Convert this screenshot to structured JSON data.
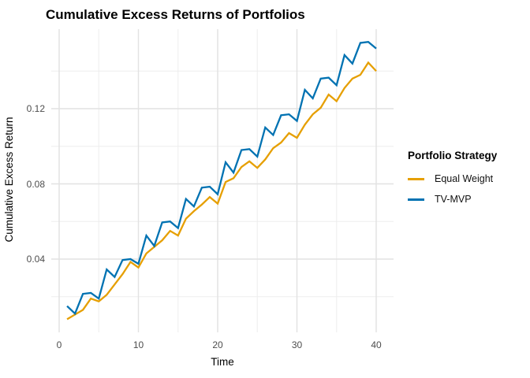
{
  "title": "Cumulative Excess Returns of Portfolios",
  "legend": {
    "title": "Portfolio Strategy",
    "items": [
      {
        "label": "Equal Weight",
        "color": "#E69F00"
      },
      {
        "label": "TV-MVP",
        "color": "#0072B2"
      }
    ]
  },
  "colors": {
    "background": "#FFFFFF",
    "grid_major": "#E2E2E2",
    "grid_minor": "#EDEDED",
    "tick_label": "#4D4D4D",
    "equal_weight": "#E69F00",
    "tv_mvp": "#0072B2"
  },
  "chart_data": {
    "type": "line",
    "title": "Cumulative Excess Returns of Portfolios",
    "xlabel": "Time",
    "ylabel": "Cumulative Excess Return",
    "legend_title": "Portfolio Strategy",
    "legend_position": "right",
    "grid": true,
    "xlim": [
      -1,
      42.2
    ],
    "ylim": [
      0.001,
      0.162
    ],
    "x_ticks": [
      0,
      10,
      20,
      30,
      40
    ],
    "x_tick_labels": [
      "0",
      "10",
      "20",
      "30",
      "40"
    ],
    "x_minor_ticks": [
      5,
      15,
      25,
      35
    ],
    "y_ticks": [
      0.04,
      0.08,
      0.12
    ],
    "y_tick_labels": [
      "0.04",
      "0.08",
      "0.12"
    ],
    "y_minor_ticks": [
      0.02,
      0.06,
      0.1,
      0.14
    ],
    "x": [
      1,
      2,
      3,
      4,
      5,
      6,
      7,
      8,
      9,
      10,
      11,
      12,
      13,
      14,
      15,
      16,
      17,
      18,
      19,
      20,
      21,
      22,
      23,
      24,
      25,
      26,
      27,
      28,
      29,
      30,
      31,
      32,
      33,
      34,
      35,
      36,
      37,
      38,
      39,
      40
    ],
    "series": [
      {
        "name": "Equal Weight",
        "color": "#E69F00",
        "values": [
          0.008,
          0.0105,
          0.013,
          0.019,
          0.0175,
          0.021,
          0.0265,
          0.032,
          0.0385,
          0.0355,
          0.043,
          0.0465,
          0.05,
          0.055,
          0.0525,
          0.0615,
          0.0655,
          0.069,
          0.073,
          0.0695,
          0.081,
          0.083,
          0.089,
          0.092,
          0.0885,
          0.093,
          0.099,
          0.102,
          0.107,
          0.1045,
          0.1115,
          0.117,
          0.1205,
          0.1275,
          0.124,
          0.131,
          0.136,
          0.138,
          0.1445,
          0.14
        ]
      },
      {
        "name": "TV-MVP",
        "color": "#0072B2",
        "values": [
          0.015,
          0.011,
          0.0215,
          0.022,
          0.019,
          0.0345,
          0.0305,
          0.0395,
          0.04,
          0.0375,
          0.0525,
          0.047,
          0.0595,
          0.06,
          0.0565,
          0.072,
          0.068,
          0.078,
          0.0785,
          0.0745,
          0.0915,
          0.086,
          0.098,
          0.0985,
          0.0945,
          0.11,
          0.106,
          0.1165,
          0.117,
          0.1135,
          0.13,
          0.1255,
          0.136,
          0.1365,
          0.1325,
          0.1485,
          0.144,
          0.155,
          0.1555,
          0.152
        ]
      }
    ]
  }
}
